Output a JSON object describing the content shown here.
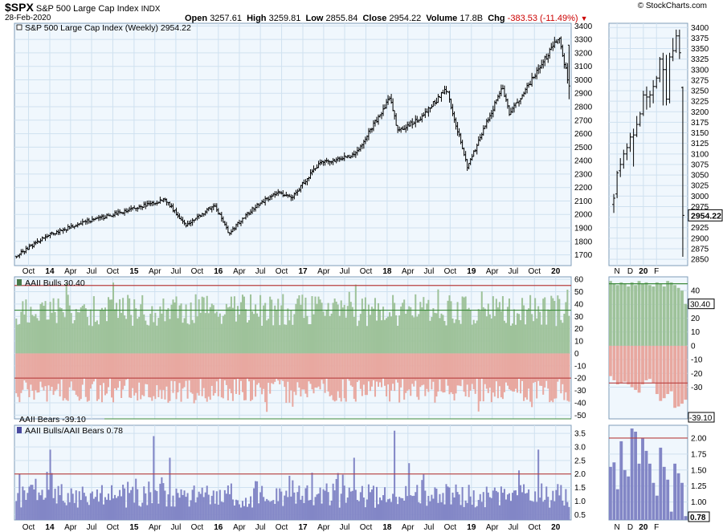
{
  "header": {
    "symbol": "$SPX",
    "name": "S&P 500 Large Cap Index",
    "exchange": "INDX",
    "date": "28-Feb-2020",
    "watermark": "© StockCharts.com",
    "open_label": "Open",
    "open": "3257.61",
    "high_label": "High",
    "high": "3259.81",
    "low_label": "Low",
    "low": "2855.84",
    "close_label": "Close",
    "close": "2954.22",
    "volume_label": "Volume",
    "volume": "17.8B",
    "chg_label": "Chg",
    "chg": "-383.53 (-11.49%)",
    "chg_color": "#cc0000"
  },
  "chart_data": [
    {
      "type": "ohlc",
      "panel": "price-main",
      "title": "S&P 500 Large Cap Index (Weekly) 2954.22",
      "y_ticks": [
        1700,
        1800,
        1900,
        2000,
        2100,
        2200,
        2300,
        2400,
        2500,
        2600,
        2700,
        2800,
        2900,
        3000,
        3100,
        3200,
        3300,
        3400
      ],
      "ylim": [
        1620,
        3420
      ],
      "x_labels": [
        "Oct",
        "14",
        "Apr",
        "Jul",
        "Oct",
        "15",
        "Apr",
        "Jul",
        "Oct",
        "16",
        "Apr",
        "Jul",
        "Oct",
        "17",
        "Apr",
        "Jul",
        "Oct",
        "18",
        "Apr",
        "Jul",
        "Oct",
        "19",
        "Apr",
        "Jul",
        "Oct",
        "20"
      ],
      "anchor_dates": [
        "2013-09",
        "2013-12",
        "2014-06",
        "2014-09",
        "2015-05",
        "2015-08",
        "2015-12",
        "2016-02",
        "2016-06",
        "2016-09",
        "2016-11",
        "2017-03",
        "2017-08",
        "2018-01",
        "2018-02",
        "2018-05",
        "2018-09",
        "2018-12",
        "2019-05",
        "2019-06",
        "2019-08",
        "2020-01",
        "2020-02"
      ],
      "anchor_closes": [
        1690,
        1840,
        1950,
        1990,
        2110,
        1920,
        2070,
        1860,
        2070,
        2160,
        2130,
        2380,
        2440,
        2870,
        2620,
        2700,
        2930,
        2350,
        2950,
        2750,
        2900,
        3320,
        2954
      ],
      "last_close": 2954.22
    },
    {
      "type": "ohlc",
      "panel": "price-side",
      "y_ticks": [
        2850,
        2875,
        2900,
        2925,
        2950,
        2975,
        3000,
        3025,
        3050,
        3075,
        3100,
        3125,
        3150,
        3175,
        3200,
        3225,
        3250,
        3275,
        3300,
        3325,
        3350,
        3375,
        3400
      ],
      "ylim": [
        2835,
        3410
      ],
      "x_labels": [
        "N",
        "D",
        "20",
        "F"
      ],
      "last_label": "2954.22",
      "bars": [
        {
          "o": 2980,
          "h": 3005,
          "l": 2960,
          "c": 2995
        },
        {
          "o": 3005,
          "h": 3060,
          "l": 2995,
          "c": 3055
        },
        {
          "o": 3060,
          "h": 3090,
          "l": 3045,
          "c": 3075
        },
        {
          "o": 3075,
          "h": 3110,
          "l": 3065,
          "c": 3100
        },
        {
          "o": 3100,
          "h": 3125,
          "l": 3085,
          "c": 3115
        },
        {
          "o": 3115,
          "h": 3150,
          "l": 3105,
          "c": 3140
        },
        {
          "o": 3140,
          "h": 3160,
          "l": 3070,
          "c": 3145
        },
        {
          "o": 3145,
          "h": 3190,
          "l": 3140,
          "c": 3170
        },
        {
          "o": 3170,
          "h": 3200,
          "l": 3165,
          "c": 3195
        },
        {
          "o": 3195,
          "h": 3250,
          "l": 3190,
          "c": 3240
        },
        {
          "o": 3240,
          "h": 3260,
          "l": 3205,
          "c": 3235
        },
        {
          "o": 3235,
          "h": 3250,
          "l": 3210,
          "c": 3240
        },
        {
          "o": 3240,
          "h": 3275,
          "l": 3220,
          "c": 3260
        },
        {
          "o": 3260,
          "h": 3285,
          "l": 3255,
          "c": 3280
        },
        {
          "o": 3280,
          "h": 3330,
          "l": 3270,
          "c": 3325
        },
        {
          "o": 3325,
          "h": 3340,
          "l": 3215,
          "c": 3300
        },
        {
          "o": 3300,
          "h": 3335,
          "l": 3215,
          "c": 3230
        },
        {
          "o": 3230,
          "h": 3340,
          "l": 3220,
          "c": 3330
        },
        {
          "o": 3330,
          "h": 3375,
          "l": 3320,
          "c": 3345
        },
        {
          "o": 3345,
          "h": 3395,
          "l": 3340,
          "c": 3380
        },
        {
          "o": 3380,
          "h": 3395,
          "l": 3325,
          "c": 3340
        },
        {
          "o": 3257.61,
          "h": 3259.81,
          "l": 2855.84,
          "c": 2954.22
        }
      ]
    },
    {
      "type": "bar",
      "panel": "aaii-main",
      "bulls_label": "AAII Bulls 30.40",
      "bears_label": "AAII Bears -39.10",
      "y_ticks": [
        -50,
        -40,
        -30,
        -20,
        -10,
        0,
        10,
        20,
        30,
        40,
        50,
        60
      ],
      "ylim": [
        -53,
        62
      ],
      "ref_lines": [
        {
          "y": 55,
          "color": "#b84040"
        },
        {
          "y": 35,
          "color": "#3c8a3c"
        },
        {
          "y": -20,
          "color": "#b84040"
        }
      ],
      "bulls_range": [
        22,
        48
      ],
      "bears_range": [
        -20,
        -40
      ],
      "last_bulls": 30.4,
      "last_bears": -39.1
    },
    {
      "type": "bar",
      "panel": "aaii-side",
      "y_ticks": [
        -30,
        -20,
        -10,
        0,
        10,
        20,
        30,
        40
      ],
      "ylim": [
        -53,
        50
      ],
      "ref_lines": [
        {
          "y": 45,
          "color": "#3c8a3c"
        },
        {
          "y": -27,
          "color": "#b84040"
        }
      ],
      "bulls": [
        47,
        45,
        44,
        46,
        45,
        43,
        46,
        44,
        47,
        45,
        46,
        44,
        43,
        46,
        45,
        43,
        47,
        46,
        44,
        42,
        40,
        30.4
      ],
      "bears": [
        -22,
        -25,
        -28,
        -27,
        -26,
        -28,
        -30,
        -32,
        -34,
        -28,
        -25,
        -24,
        -27,
        -35,
        -40,
        -38,
        -35,
        -33,
        -45,
        -44,
        -42,
        -39.1
      ],
      "bulls_value_label": "30.40",
      "bears_value_label": "-39.10"
    },
    {
      "type": "bar",
      "panel": "ratio-main",
      "title": "AAII Bulls/AAII Bears 0.78",
      "y_ticks": [
        0.5,
        1.0,
        1.5,
        2.0,
        2.5,
        3.0,
        3.5
      ],
      "ylim": [
        0.3,
        3.8
      ],
      "ref_lines": [
        {
          "y": 2.0,
          "color": "#b84040"
        }
      ],
      "spikes": [
        {
          "week": 2,
          "v": 2.0
        },
        {
          "week": 21,
          "v": 2.9
        },
        {
          "week": 85,
          "v": 3.4
        },
        {
          "week": 95,
          "v": 2.6
        },
        {
          "week": 209,
          "v": 2.6
        },
        {
          "week": 234,
          "v": 3.6
        },
        {
          "week": 243,
          "v": 2.4
        },
        {
          "week": 323,
          "v": 2.9
        }
      ],
      "last": 0.78
    },
    {
      "type": "bar",
      "panel": "ratio-side",
      "y_ticks": [
        1.0,
        1.25,
        1.5,
        1.75,
        2.0
      ],
      "ylim": [
        0.72,
        2.2
      ],
      "ref_lines": [
        {
          "y": 2.0,
          "color": "#b84040"
        }
      ],
      "values": [
        1.55,
        1.62,
        1.2,
        1.95,
        1.5,
        1.4,
        2.15,
        2.1,
        1.6,
        2.0,
        1.8,
        1.6,
        1.3,
        1.1,
        1.85,
        1.55,
        1.35,
        0.85,
        1.6,
        1.45,
        1.3,
        0.78
      ],
      "value_label": "0.78"
    }
  ],
  "colors": {
    "panel_bg": "#f0f7fd",
    "grid": "#cfe1f0",
    "border": "#7f9db9",
    "bulls_fill": "#9ec29a",
    "bears_fill": "#e8a8a0",
    "ratio_fill": "#8286c6",
    "price_bar": "#000000"
  }
}
